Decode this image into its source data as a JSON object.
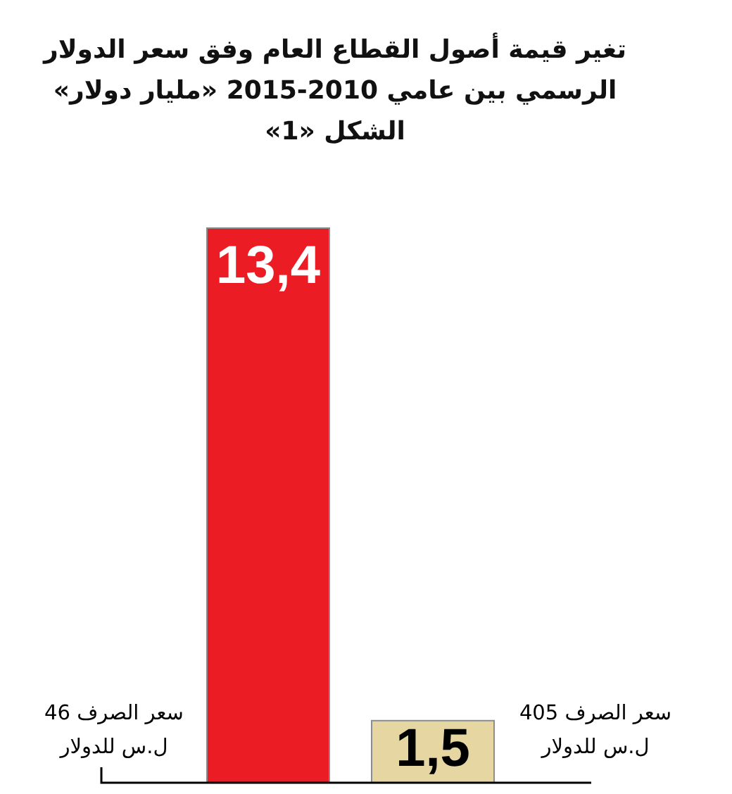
{
  "chart_data": {
    "type": "bar",
    "title": "تغير قيمة أصول القطاع العام وفق سعر الدولار\nالرسمي بين عامي 2010-2015 «مليار دولار»",
    "subtitle": "الشكل «1»",
    "categories": [
      "سعر الصرف 46\nل.س للدولار",
      "سعر الصرف 405\nل.س للدولار"
    ],
    "values": [
      13.4,
      1.5
    ],
    "colors": [
      "#ec1c24",
      "#e6d6a2"
    ],
    "value_labels": [
      "13,4",
      "1,5"
    ]
  }
}
